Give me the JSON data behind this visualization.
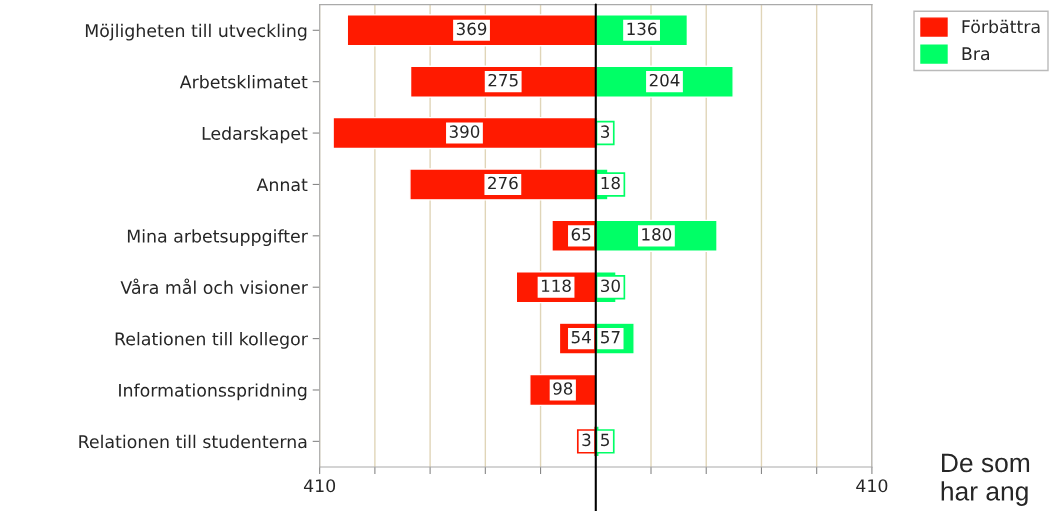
{
  "chart_data": {
    "type": "bar",
    "orientation": "horizontal",
    "categories": [
      "Möjligheten till utveckling",
      "Arbetsklimatet",
      "Ledarskapet",
      "Annat",
      "Mina arbetsuppgifter",
      "Våra mål och visioner",
      "Relationen till kollegor",
      "Informationsspridning",
      "Relationen till studenterna"
    ],
    "series": [
      {
        "name": "Förbättra",
        "color": "#ff1a00",
        "values": [
          369,
          275,
          390,
          276,
          65,
          118,
          54,
          98,
          3
        ],
        "base": [
          -369,
          -275,
          -390,
          -276,
          -65,
          -118,
          -54,
          -98,
          -3
        ],
        "value_labels": [
          "369",
          "275",
          "390",
          "276",
          "65",
          "118",
          "54",
          "98",
          "3"
        ]
      },
      {
        "name": "Bra",
        "color": "#00ff66",
        "values": [
          136,
          204,
          3,
          18,
          180,
          30,
          57,
          null,
          5
        ],
        "value_labels": [
          "136",
          "204",
          "3",
          "18",
          "180",
          "30",
          "57",
          null,
          "5"
        ]
      }
    ],
    "xlim": [
      -410,
      410
    ],
    "xticks": [
      {
        "value": -410,
        "label": "410"
      },
      {
        "value": -328,
        "label": null
      },
      {
        "value": -246,
        "label": null
      },
      {
        "value": -164,
        "label": null
      },
      {
        "value": -82,
        "label": null
      },
      {
        "value": 82,
        "label": null
      },
      {
        "value": 164,
        "label": null
      },
      {
        "value": 246,
        "label": null
      },
      {
        "value": 328,
        "label": null
      },
      {
        "value": 410,
        "label": "410"
      }
    ],
    "ref_lines": [
      {
        "axis": "x",
        "value": 0,
        "color": "#000000"
      }
    ],
    "grid": "x",
    "legend": "top right",
    "annotations": [
      "De som\nhar ang"
    ]
  }
}
